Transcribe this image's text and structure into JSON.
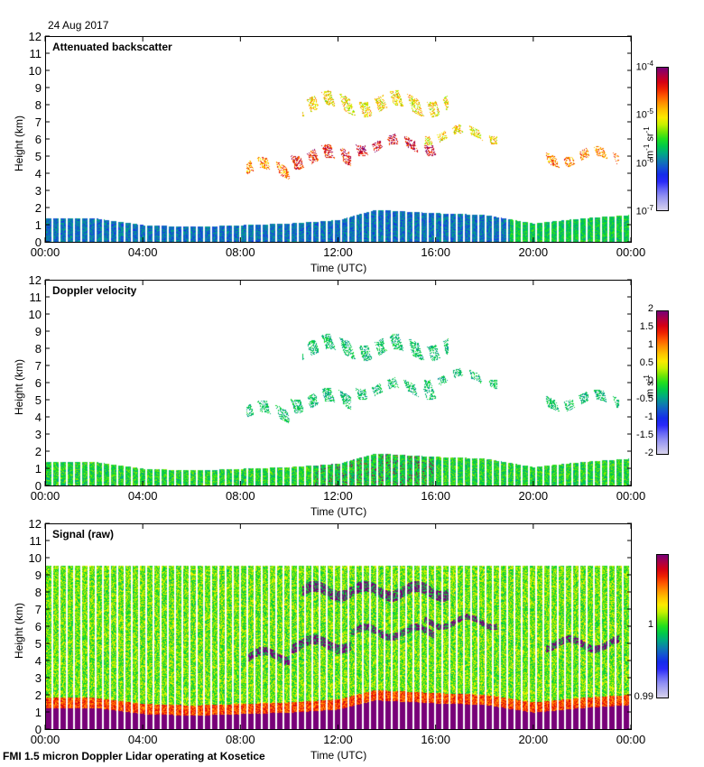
{
  "header": {
    "date": "24 Aug 2017"
  },
  "footer": {
    "caption": "FMI 1.5 micron Doppler Lidar operating at Kosetice"
  },
  "chart_data": [
    {
      "type": "heatmap",
      "title": "Attenuated backscatter",
      "xlabel": "Time (UTC)",
      "ylabel": "Height (km)",
      "xlim": [
        0,
        24
      ],
      "ylim": [
        0,
        12
      ],
      "xticks": [
        "00:00",
        "04:00",
        "08:00",
        "12:00",
        "16:00",
        "20:00",
        "00:00"
      ],
      "yticks": [
        "0",
        "1",
        "2",
        "3",
        "4",
        "5",
        "6",
        "7",
        "8",
        "9",
        "10",
        "11",
        "12"
      ],
      "colorbar": {
        "scale": "log",
        "range": [
          1e-07,
          0.0001
        ],
        "unit": "m-1 sr-1",
        "ticks": [
          {
            "base": "10",
            "exp": "-4"
          },
          {
            "base": "10",
            "exp": "-5"
          },
          {
            "base": "10",
            "exp": "-6"
          },
          {
            "base": "10",
            "exp": "-7"
          }
        ]
      },
      "boundary_layer_top_km": [
        [
          0,
          1.4
        ],
        [
          2,
          1.4
        ],
        [
          4,
          1.0
        ],
        [
          6,
          0.9
        ],
        [
          8,
          1.0
        ],
        [
          10,
          1.1
        ],
        [
          12,
          1.3
        ],
        [
          13.5,
          1.9
        ],
        [
          16,
          1.7
        ],
        [
          18,
          1.6
        ],
        [
          20,
          1.1
        ],
        [
          22,
          1.4
        ],
        [
          24,
          1.6
        ]
      ],
      "cloud_layers": [
        {
          "t0": 8.2,
          "t1": 10.0,
          "h": 4.3,
          "thickness": 0.7,
          "level": 0.75
        },
        {
          "t0": 10.0,
          "t1": 12.5,
          "h": 5.0,
          "thickness": 0.8,
          "level": 0.85
        },
        {
          "t0": 12.5,
          "t1": 16.0,
          "h": 5.7,
          "thickness": 0.6,
          "level": 0.9
        },
        {
          "t0": 15.5,
          "t1": 18.5,
          "h": 6.3,
          "thickness": 0.5,
          "level": 0.65
        },
        {
          "t0": 20.5,
          "t1": 23.5,
          "h": 5.0,
          "thickness": 0.6,
          "level": 0.75
        },
        {
          "t0": 10.5,
          "t1": 16.5,
          "h": 8.1,
          "thickness": 0.9,
          "level": 0.65
        }
      ]
    },
    {
      "type": "heatmap",
      "title": "Doppler velocity",
      "xlabel": "Time (UTC)",
      "ylabel": "Height (km)",
      "xlim": [
        0,
        24
      ],
      "ylim": [
        0,
        12
      ],
      "xticks": [
        "00:00",
        "04:00",
        "08:00",
        "12:00",
        "16:00",
        "20:00",
        "00:00"
      ],
      "yticks": [
        "0",
        "1",
        "2",
        "3",
        "4",
        "5",
        "6",
        "7",
        "8",
        "9",
        "10",
        "11",
        "12"
      ],
      "colorbar": {
        "scale": "linear",
        "range": [
          -2,
          2
        ],
        "unit": "m s-1",
        "ticks": [
          "2",
          "1.5",
          "1",
          "0.5",
          "0",
          "-0.5",
          "-1",
          "-1.5",
          "-2"
        ]
      }
    },
    {
      "type": "heatmap",
      "title": "Signal (raw)",
      "xlabel": "Time (UTC)",
      "ylabel": "Height (km)",
      "xlim": [
        0,
        24
      ],
      "ylim": [
        0,
        12
      ],
      "xticks": [
        "00:00",
        "04:00",
        "08:00",
        "12:00",
        "16:00",
        "20:00",
        "00:00"
      ],
      "yticks": [
        "0",
        "1",
        "2",
        "3",
        "4",
        "5",
        "6",
        "7",
        "8",
        "9",
        "10",
        "11",
        "12"
      ],
      "data_top_km": 9.6,
      "colorbar": {
        "scale": "linear",
        "range": [
          0.99,
          1.01
        ],
        "unit": "",
        "ticks": [
          "1",
          "0.99"
        ]
      }
    }
  ]
}
